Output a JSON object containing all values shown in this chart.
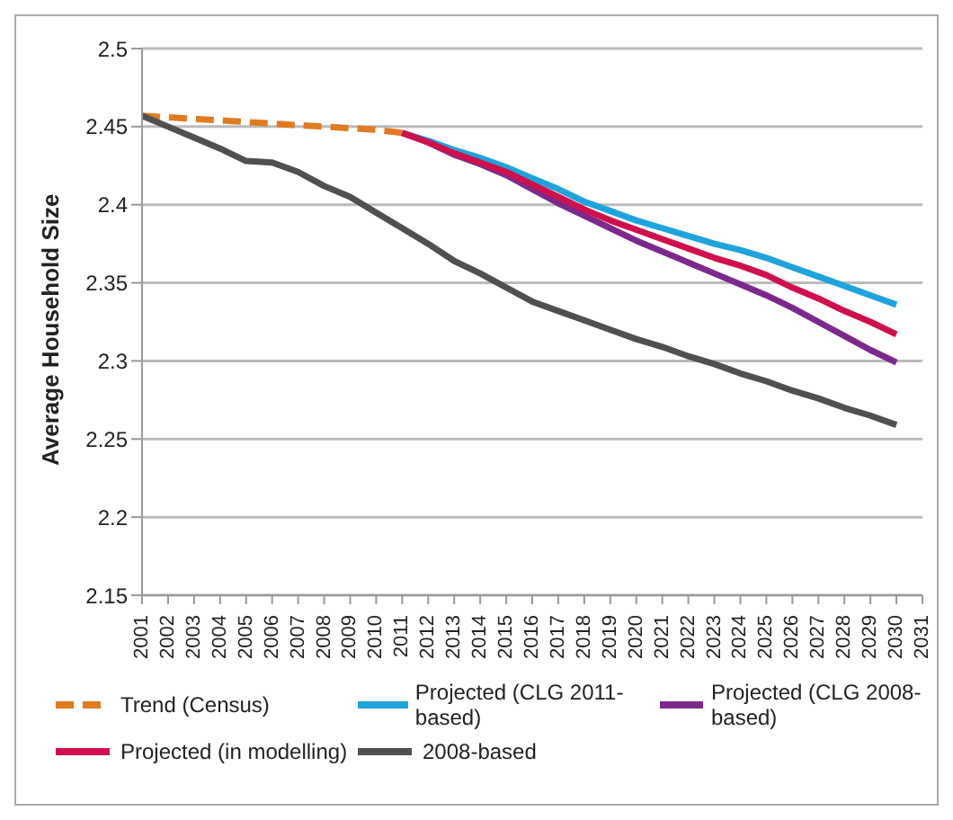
{
  "chart_data": {
    "type": "line",
    "ylabel": "Average Household Size",
    "categories": [
      "2001",
      "2002",
      "2003",
      "2004",
      "2005",
      "2006",
      "2007",
      "2008",
      "2009",
      "2010",
      "2011",
      "2012",
      "2013",
      "2014",
      "2015",
      "2016",
      "2017",
      "2018",
      "2019",
      "2020",
      "2021",
      "2022",
      "2023",
      "2024",
      "2025",
      "2026",
      "2027",
      "2028",
      "2029",
      "2030",
      "2031"
    ],
    "series": [
      {
        "name": "Trend (Census)",
        "color": "#e07b20",
        "line_style": "dashed",
        "values": [
          2.457,
          2.456,
          2.455,
          2.454,
          2.453,
          2.452,
          2.451,
          2.45,
          2.449,
          2.448,
          2.446,
          null,
          null,
          null,
          null,
          null,
          null,
          null,
          null,
          null,
          null,
          null,
          null,
          null,
          null,
          null,
          null,
          null,
          null,
          null,
          null
        ]
      },
      {
        "name": "Projected (CLG 2011-based)",
        "color": "#1fa3dd",
        "values": [
          null,
          null,
          null,
          null,
          null,
          null,
          null,
          null,
          null,
          null,
          2.446,
          2.441,
          2.435,
          2.43,
          2.424,
          2.417,
          2.41,
          2.402,
          2.396,
          2.39,
          2.385,
          2.38,
          2.375,
          2.371,
          2.366,
          2.36,
          2.354,
          2.348,
          2.342,
          2.336,
          null
        ]
      },
      {
        "name": "Projected (CLG 2008-based)",
        "color": "#7b2a8c",
        "values": [
          null,
          null,
          null,
          null,
          null,
          null,
          null,
          null,
          null,
          null,
          2.446,
          2.44,
          2.432,
          2.426,
          2.419,
          2.41,
          2.401,
          2.393,
          2.385,
          2.377,
          2.37,
          2.363,
          2.356,
          2.349,
          2.342,
          2.334,
          2.325,
          2.316,
          2.307,
          2.299,
          null
        ]
      },
      {
        "name": "Projected (in modelling)",
        "color": "#d0104c",
        "values": [
          null,
          null,
          null,
          null,
          null,
          null,
          null,
          null,
          null,
          null,
          2.446,
          2.44,
          2.433,
          2.427,
          2.421,
          2.413,
          2.405,
          2.397,
          2.39,
          2.384,
          2.378,
          2.372,
          2.366,
          2.361,
          2.355,
          2.347,
          2.34,
          2.332,
          2.325,
          2.317,
          null
        ]
      },
      {
        "name": "2008-based",
        "color": "#505050",
        "values": [
          2.457,
          2.45,
          2.443,
          2.436,
          2.428,
          2.427,
          2.421,
          2.412,
          2.405,
          2.395,
          2.385,
          2.375,
          2.364,
          2.356,
          2.347,
          2.338,
          2.332,
          2.326,
          2.32,
          2.314,
          2.309,
          2.303,
          2.298,
          2.292,
          2.287,
          2.281,
          2.276,
          2.27,
          2.265,
          2.259,
          null
        ]
      }
    ],
    "ylim": [
      2.15,
      2.5
    ],
    "yticks": [
      2.15,
      2.2,
      2.25,
      2.3,
      2.35,
      2.4,
      2.45,
      2.5
    ],
    "grid": "y",
    "legend": "bottom",
    "marker": "none"
  }
}
